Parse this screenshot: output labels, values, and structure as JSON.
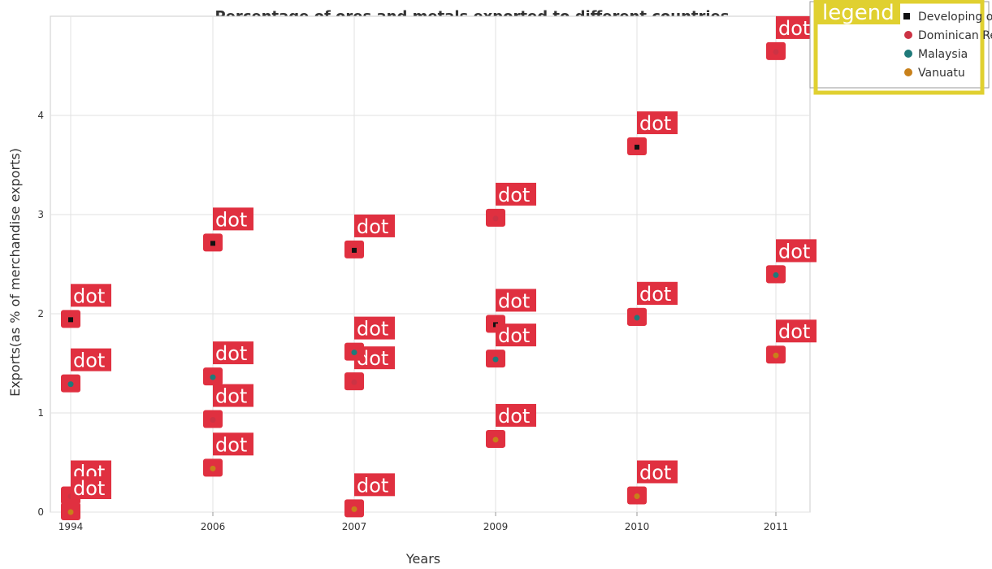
{
  "chart_data": {
    "type": "scatter",
    "title": "Percentage of ores and metals exported to different countries",
    "xlabel": "Years",
    "ylabel": "Exports(as % of merchandise exports)",
    "categories": [
      "1994",
      "2006",
      "2007",
      "2009",
      "2010",
      "2011"
    ],
    "ylim": [
      0,
      5
    ],
    "yticks": [
      "0",
      "1",
      "2",
      "3",
      "4"
    ],
    "grid": true,
    "legend_placement": "top-right",
    "legend_title": "legend",
    "annotation_label": "dot",
    "series": [
      {
        "name": "Developing only",
        "color": "#111111",
        "values": [
          1.94,
          2.71,
          2.64,
          1.89,
          3.68,
          2.39
        ]
      },
      {
        "name": "Dominican Republic",
        "color": "#cc3344",
        "values": [
          0.16,
          0.93,
          1.31,
          2.96,
          1.96,
          4.64
        ]
      },
      {
        "name": "Malaysia",
        "color": "#1f7a7a",
        "values": [
          1.29,
          1.36,
          1.61,
          1.54,
          1.96,
          2.39
        ]
      },
      {
        "name": "Vanuatu",
        "color": "#c8801a",
        "values": [
          0.0,
          0.44,
          0.03,
          0.73,
          0.16,
          1.58
        ]
      }
    ]
  }
}
